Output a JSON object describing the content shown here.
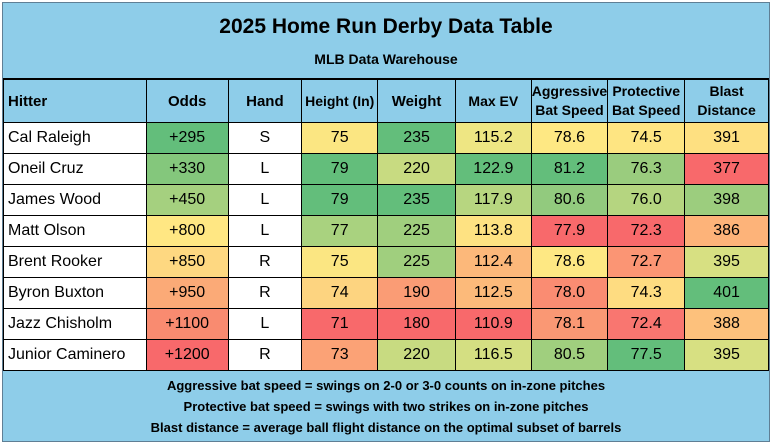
{
  "title": "2025 Home Run Derby Data Table",
  "subtitle": "MLB Data Warehouse",
  "columns": {
    "hitter": "Hitter",
    "odds": "Odds",
    "hand": "Hand",
    "height": "Height (In)",
    "weight": "Weight",
    "max_ev": "Max EV",
    "agg_line1": "Aggressive",
    "agg_line2": "Bat Speed",
    "prot_line1": "Protective",
    "prot_line2": "Bat Speed",
    "blast_line1": "Blast",
    "blast_line2": "Distance"
  },
  "rows": [
    {
      "hitter": "Cal Raleigh",
      "odds": "+295",
      "hand": "S",
      "height": "75",
      "weight": "235",
      "max_ev": "115.2",
      "agg": "78.6",
      "prot": "74.5",
      "blast": "391"
    },
    {
      "hitter": "Oneil Cruz",
      "odds": "+330",
      "hand": "L",
      "height": "79",
      "weight": "220",
      "max_ev": "122.9",
      "agg": "81.2",
      "prot": "76.3",
      "blast": "377"
    },
    {
      "hitter": "James Wood",
      "odds": "+450",
      "hand": "L",
      "height": "79",
      "weight": "235",
      "max_ev": "117.9",
      "agg": "80.6",
      "prot": "76.0",
      "blast": "398"
    },
    {
      "hitter": "Matt Olson",
      "odds": "+800",
      "hand": "L",
      "height": "77",
      "weight": "225",
      "max_ev": "113.8",
      "agg": "77.9",
      "prot": "72.3",
      "blast": "386"
    },
    {
      "hitter": "Brent Rooker",
      "odds": "+850",
      "hand": "R",
      "height": "75",
      "weight": "225",
      "max_ev": "112.4",
      "agg": "78.6",
      "prot": "72.7",
      "blast": "395"
    },
    {
      "hitter": "Byron Buxton",
      "odds": "+950",
      "hand": "R",
      "height": "74",
      "weight": "190",
      "max_ev": "112.5",
      "agg": "78.0",
      "prot": "74.3",
      "blast": "401"
    },
    {
      "hitter": "Jazz Chisholm",
      "odds": "+1100",
      "hand": "L",
      "height": "71",
      "weight": "180",
      "max_ev": "110.9",
      "agg": "78.1",
      "prot": "72.4",
      "blast": "388"
    },
    {
      "hitter": "Junior Caminero",
      "odds": "+1200",
      "hand": "R",
      "height": "73",
      "weight": "220",
      "max_ev": "116.5",
      "agg": "80.5",
      "prot": "77.5",
      "blast": "395"
    }
  ],
  "colors": {
    "odds": [
      "#63be7b",
      "#84c77c",
      "#a5d07f",
      "#ffe783",
      "#fed881",
      "#fbaa77",
      "#f98b70",
      "#f8696b"
    ],
    "height": [
      "#fbe682",
      "#63be7b",
      "#63be7b",
      "#a9d27f",
      "#fbe682",
      "#fdd480",
      "#f8696b",
      "#fba276"
    ],
    "weight": [
      "#63be7b",
      "#c8db81",
      "#63be7b",
      "#a0cf7e",
      "#a0cf7e",
      "#fa9c75",
      "#f8696b",
      "#c8db81"
    ],
    "max_ev": [
      "#eee683",
      "#63be7b",
      "#b7d680",
      "#fee282",
      "#fcb87a",
      "#fcba7a",
      "#f8696b",
      "#d4df82"
    ],
    "agg": [
      "#fee883",
      "#63be7b",
      "#92ca7e",
      "#f8696b",
      "#fee883",
      "#fa8c72",
      "#fa9874",
      "#a0cf7e"
    ],
    "prot": [
      "#fee582",
      "#9acc7e",
      "#b5d580",
      "#f8696b",
      "#fb9574",
      "#fedc81",
      "#f97670",
      "#63be7b"
    ],
    "blast": [
      "#fee081",
      "#f8696b",
      "#9ccd7e",
      "#fdb379",
      "#d7e082",
      "#63be7b",
      "#fdc17c",
      "#d7e082"
    ]
  },
  "footer": {
    "line1": "Aggressive bat speed = swings on 2-0 or 3-0 counts on in-zone pitches",
    "line2": "Protective bat speed = swings with two strikes on in-zone pitches",
    "line3": "Blast distance = average ball flight distance on the optimal subset of barrels"
  }
}
